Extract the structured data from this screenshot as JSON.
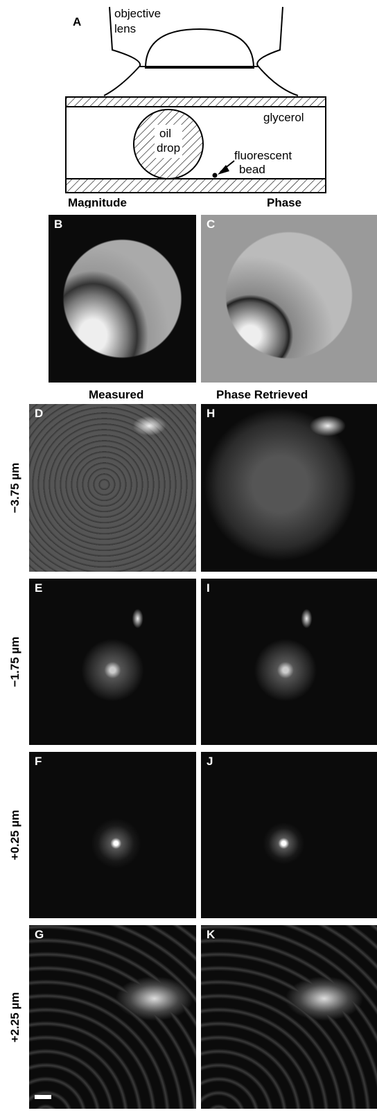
{
  "figure": {
    "panel_a": {
      "label": "A",
      "objective": "objective",
      "lens": "lens",
      "glycerol": "glycerol",
      "oil": "oil",
      "drop": "drop",
      "fluorescent": "fluorescent",
      "bead": "bead",
      "magnitude": "Magnitude",
      "phase": "Phase"
    },
    "panel_b": "B",
    "panel_c": "C",
    "column_headers": [
      "Measured",
      "Phase Retrieved"
    ],
    "rows": [
      {
        "label": "−3.75 µm",
        "left": "D",
        "right": "H"
      },
      {
        "label": "−1.75 µm",
        "left": "E",
        "right": "I"
      },
      {
        "label": "+0.25 µm",
        "left": "F",
        "right": "J"
      },
      {
        "label": "+2.25 µm",
        "left": "G",
        "right": "K"
      }
    ]
  }
}
